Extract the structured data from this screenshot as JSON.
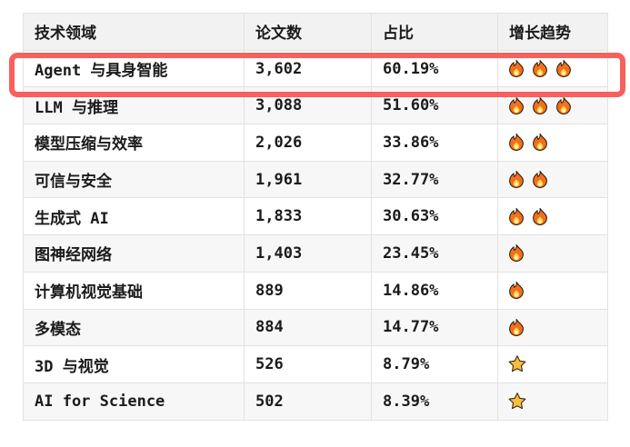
{
  "chart_data": {
    "type": "table",
    "columns": [
      "技术领域",
      "论文数",
      "占比",
      "增长趋势"
    ],
    "rows": [
      [
        "Agent 与具身智能",
        3602,
        "60.19%",
        "fire×3"
      ],
      [
        "LLM 与推理",
        3088,
        "51.60%",
        "fire×3"
      ],
      [
        "模型压缩与效率",
        2026,
        "33.86%",
        "fire×2"
      ],
      [
        "可信与安全",
        1961,
        "32.77%",
        "fire×2"
      ],
      [
        "生成式 AI",
        1833,
        "30.63%",
        "fire×2"
      ],
      [
        "图神经网络",
        1403,
        "23.45%",
        "fire×1"
      ],
      [
        "计算机视觉基础",
        889,
        "14.86%",
        "fire×1"
      ],
      [
        "多模态",
        884,
        "14.77%",
        "fire×1"
      ],
      [
        "3D 与视觉",
        526,
        "8.79%",
        "star×1"
      ],
      [
        "AI for Science",
        502,
        "8.39%",
        "star×1"
      ]
    ],
    "highlighted_row": "Agent 与具身智能"
  },
  "table": {
    "columns": [
      {
        "label": "技术领域"
      },
      {
        "label": "论文数"
      },
      {
        "label": "占比"
      },
      {
        "label": "增长趋势"
      }
    ],
    "rows": [
      {
        "field": "Agent 与具身智能",
        "papers": "3,602",
        "share": "60.19%",
        "trend": {
          "icon": "fire",
          "count": 3
        },
        "highlighted": true
      },
      {
        "field": "LLM 与推理",
        "papers": "3,088",
        "share": "51.60%",
        "trend": {
          "icon": "fire",
          "count": 3
        }
      },
      {
        "field": "模型压缩与效率",
        "papers": "2,026",
        "share": "33.86%",
        "trend": {
          "icon": "fire",
          "count": 2
        }
      },
      {
        "field": "可信与安全",
        "papers": "1,961",
        "share": "32.77%",
        "trend": {
          "icon": "fire",
          "count": 2
        }
      },
      {
        "field": "生成式 AI",
        "papers": "1,833",
        "share": "30.63%",
        "trend": {
          "icon": "fire",
          "count": 2
        }
      },
      {
        "field": "图神经网络",
        "papers": "1,403",
        "share": "23.45%",
        "trend": {
          "icon": "fire",
          "count": 1
        }
      },
      {
        "field": "计算机视觉基础",
        "papers": "889",
        "share": "14.86%",
        "trend": {
          "icon": "fire",
          "count": 1
        }
      },
      {
        "field": "多模态",
        "papers": "884",
        "share": "14.77%",
        "trend": {
          "icon": "fire",
          "count": 1
        }
      },
      {
        "field": "3D 与视觉",
        "papers": "526",
        "share": "8.79%",
        "trend": {
          "icon": "star",
          "count": 1
        }
      },
      {
        "field": "AI for Science",
        "papers": "502",
        "share": "8.39%",
        "trend": {
          "icon": "star",
          "count": 1
        }
      }
    ]
  },
  "colors": {
    "highlight_border": "#f7605c",
    "header_bg": "#f2f2f2",
    "stripe_bg": "#f7f7f7",
    "cell_border": "#e2e2e2",
    "text": "#1b1b1b",
    "fire_orange": "#f0701e",
    "fire_inner_yellow": "#fdd23e",
    "star_gold": "#f8bd3f"
  }
}
